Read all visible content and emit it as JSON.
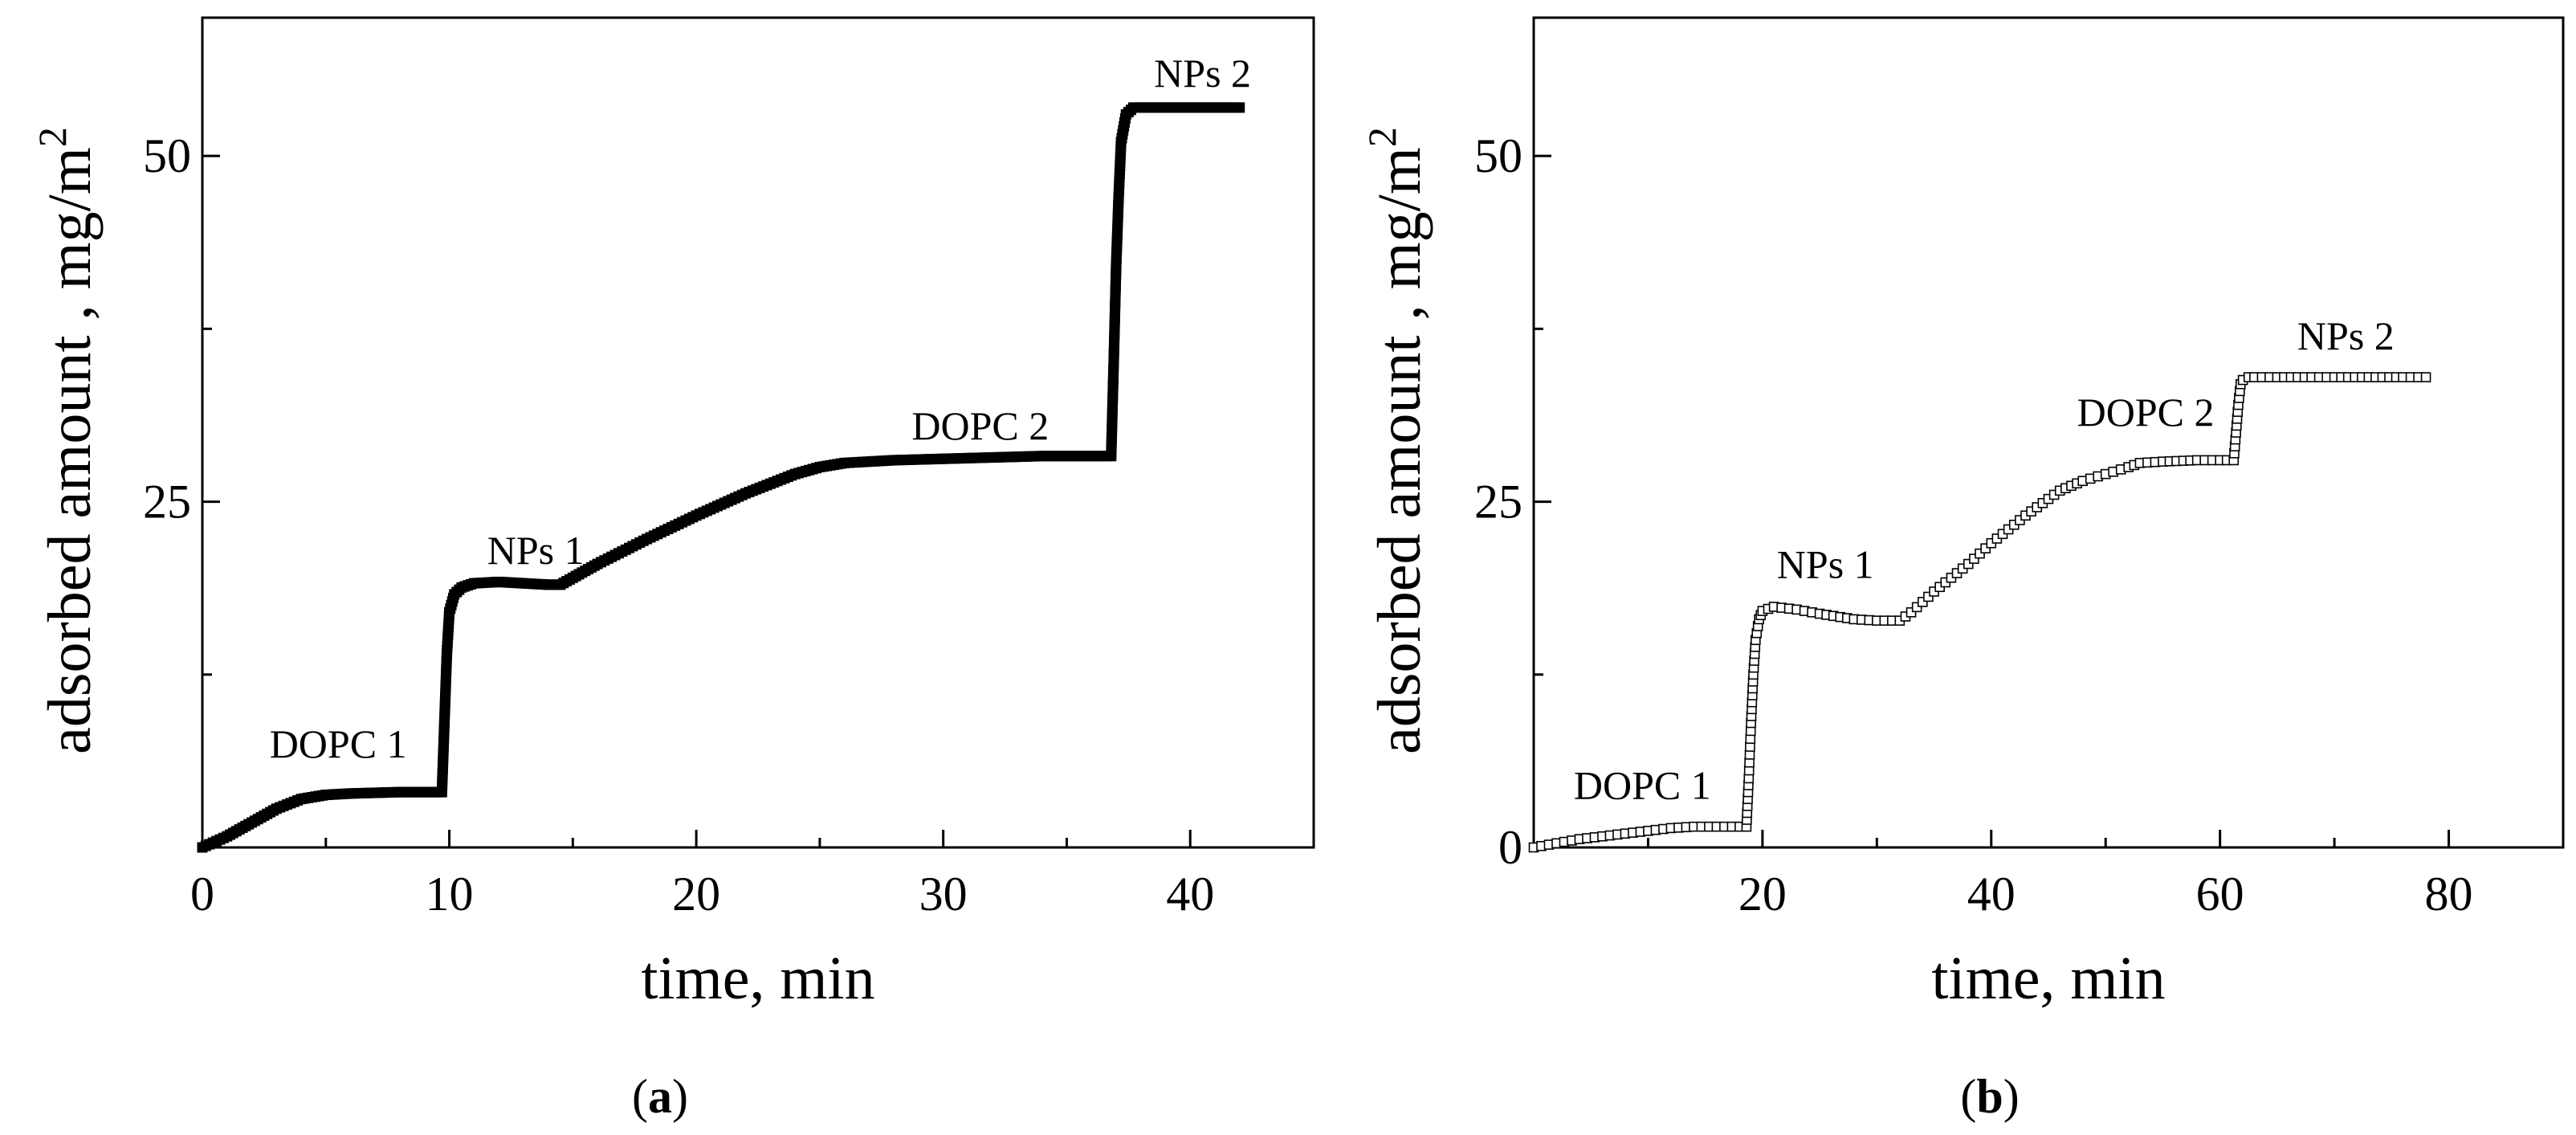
{
  "chart_data": [
    {
      "type": "scatter",
      "panel_label": "a",
      "xlabel": "time, min",
      "ylabel": "adsorbed amount , mg/m",
      "ylabel_superscript": "2",
      "xlim": [
        0,
        45
      ],
      "ylim": [
        0,
        60
      ],
      "x_ticks": [
        0,
        10,
        20,
        30,
        40
      ],
      "y_ticks": [
        25,
        50
      ],
      "marker": "filled-square",
      "annotations": [
        {
          "text": "DOPC 1",
          "x": 5.5,
          "y": 6.5
        },
        {
          "text": "NPs 1",
          "x": 13.5,
          "y": 20.5
        },
        {
          "text": "DOPC 2",
          "x": 31.5,
          "y": 29.5
        },
        {
          "text": "NPs 2",
          "x": 40.5,
          "y": 55.0
        }
      ],
      "series": [
        {
          "name": "adsorbed amount",
          "x": [
            0,
            1,
            2,
            3,
            4,
            5,
            6,
            7,
            8,
            9,
            9.7,
            9.8,
            9.9,
            10.0,
            10.2,
            10.5,
            11,
            12,
            13,
            14,
            14.5,
            15,
            16,
            18,
            20,
            22,
            24,
            25,
            26,
            28,
            30,
            32,
            34,
            36,
            36.8,
            36.9,
            37.0,
            37.1,
            37.2,
            37.4,
            37.7,
            38,
            39,
            40,
            41,
            42
          ],
          "y": [
            0,
            0.8,
            1.8,
            2.8,
            3.5,
            3.8,
            3.9,
            3.95,
            4.0,
            4.0,
            4.0,
            9,
            14,
            17,
            18.3,
            18.8,
            19.1,
            19.2,
            19.1,
            19.0,
            19.0,
            19.5,
            20.5,
            22.3,
            24.0,
            25.6,
            27.0,
            27.5,
            27.8,
            28.0,
            28.1,
            28.2,
            28.3,
            28.3,
            28.3,
            35,
            42,
            47,
            51,
            53,
            53.5,
            53.5,
            53.5,
            53.5,
            53.5,
            53.5
          ]
        }
      ]
    },
    {
      "type": "scatter",
      "panel_label": "b",
      "xlabel": "time, min",
      "ylabel": "adsorbed amount , mg/m",
      "ylabel_superscript": "2",
      "xlim": [
        0,
        90
      ],
      "ylim": [
        0,
        60
      ],
      "x_ticks": [
        20,
        40,
        60,
        80
      ],
      "y_ticks": [
        0,
        25,
        50
      ],
      "marker": "open-square",
      "annotations": [
        {
          "text": "DOPC 1",
          "x": 9.5,
          "y": 3.5
        },
        {
          "text": "NPs 1",
          "x": 25.5,
          "y": 19.5
        },
        {
          "text": "DOPC 2",
          "x": 53.5,
          "y": 30.5
        },
        {
          "text": "NPs 2",
          "x": 71.0,
          "y": 36.0
        }
      ],
      "series": [
        {
          "name": "adsorbed amount",
          "x": [
            0,
            2,
            4,
            6,
            8,
            10,
            12,
            14,
            16,
            18,
            18.6,
            18.8,
            19.0,
            19.2,
            19.4,
            19.7,
            20,
            21,
            23,
            25,
            28,
            30,
            32,
            33,
            35,
            38,
            40,
            43,
            46,
            48,
            50,
            52,
            53,
            55,
            58,
            60,
            61.2,
            61.4,
            61.6,
            61.8,
            62,
            62.5,
            63,
            65,
            68,
            70,
            73,
            76,
            78
          ],
          "y": [
            0,
            0.3,
            0.6,
            0.8,
            1.0,
            1.2,
            1.4,
            1.5,
            1.5,
            1.5,
            1.5,
            5,
            9,
            12.5,
            15,
            16.5,
            17.1,
            17.4,
            17.2,
            16.9,
            16.5,
            16.4,
            16.4,
            17.0,
            18.5,
            20.5,
            22.0,
            24.0,
            25.8,
            26.5,
            27.0,
            27.5,
            27.8,
            27.9,
            28.0,
            28.0,
            28.0,
            30,
            32,
            33.5,
            33.8,
            34.0,
            34.0,
            34.0,
            34.0,
            34.0,
            34.0,
            34.0,
            34.0
          ]
        }
      ]
    }
  ]
}
